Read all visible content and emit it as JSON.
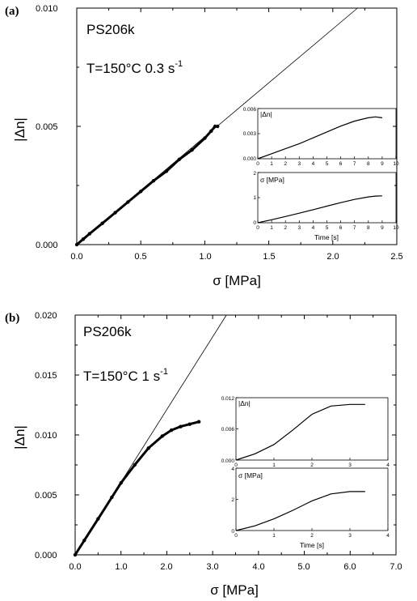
{
  "chart_data": [
    {
      "type": "scatter",
      "panel_label": "(a)",
      "annotations": {
        "sample": "PS206k",
        "condition": "T=150°C   0.3 s",
        "condition_sup": "-1"
      },
      "xlabel": "σ [MPa]",
      "ylabel": "|Δn|",
      "xlim": [
        0,
        2.5
      ],
      "ylim": [
        0,
        0.01
      ],
      "xticks": [
        "0.0",
        "0.5",
        "1.0",
        "1.5",
        "2.0",
        "2.5"
      ],
      "yticks": [
        "0.000",
        "0.005",
        "0.010"
      ],
      "reference_line": {
        "x": [
          0,
          2.5
        ],
        "y": [
          0,
          0.0114
        ]
      },
      "series": [
        {
          "x": [
            0.0,
            0.05,
            0.1,
            0.2,
            0.3,
            0.4,
            0.5,
            0.6,
            0.7,
            0.8,
            0.9,
            1.0,
            1.05,
            1.08,
            1.1
          ],
          "y": [
            0.0,
            0.00023,
            0.00046,
            0.0009,
            0.00135,
            0.0018,
            0.00225,
            0.0027,
            0.0031,
            0.0036,
            0.004,
            0.0045,
            0.0048,
            0.005,
            0.005
          ]
        }
      ],
      "insets": [
        {
          "ylabel": "|Δn|",
          "xlim": [
            0,
            10
          ],
          "ylim": [
            0,
            0.006
          ],
          "xticks": [
            "0",
            "1",
            "2",
            "3",
            "4",
            "5",
            "6",
            "7",
            "8",
            "9",
            "10"
          ],
          "yticks": [
            "0.000",
            "0.003",
            "0.006"
          ],
          "x": [
            0,
            1,
            2,
            3,
            4,
            5,
            6,
            7,
            8,
            8.5,
            9
          ],
          "y": [
            0.0,
            0.0006,
            0.0012,
            0.0018,
            0.0025,
            0.0032,
            0.0039,
            0.0045,
            0.0049,
            0.005,
            0.0049
          ]
        },
        {
          "ylabel": "σ [MPa]",
          "xlabel": "Time [s]",
          "xlim": [
            0,
            10
          ],
          "ylim": [
            0,
            2
          ],
          "xticks": [
            "0",
            "1",
            "2",
            "3",
            "4",
            "5",
            "6",
            "7",
            "8",
            "9",
            "10"
          ],
          "yticks": [
            "0",
            "1",
            "2"
          ],
          "x": [
            0,
            1,
            2,
            3,
            4,
            5,
            6,
            7,
            8,
            8.5,
            9
          ],
          "y": [
            0.0,
            0.12,
            0.25,
            0.38,
            0.52,
            0.66,
            0.8,
            0.93,
            1.03,
            1.06,
            1.07
          ]
        }
      ]
    },
    {
      "type": "scatter",
      "panel_label": "(b)",
      "annotations": {
        "sample": "PS206k",
        "condition": "T=150°C 1 s",
        "condition_sup": "-1"
      },
      "xlabel": "σ [MPa]",
      "ylabel": "|Δn|",
      "xlim": [
        0,
        7
      ],
      "ylim": [
        0,
        0.02
      ],
      "xticks": [
        "0.0",
        "1.0",
        "2.0",
        "3.0",
        "4.0",
        "5.0",
        "6.0",
        "7.0"
      ],
      "yticks": [
        "0.000",
        "0.005",
        "0.010",
        "0.015",
        "0.020"
      ],
      "reference_line": {
        "x": [
          0,
          3.3
        ],
        "y": [
          0,
          0.02
        ]
      },
      "series": [
        {
          "x": [
            0.0,
            0.2,
            0.5,
            0.8,
            1.0,
            1.3,
            1.6,
            1.9,
            2.1,
            2.3,
            2.5,
            2.7
          ],
          "y": [
            0.0,
            0.0012,
            0.003,
            0.0048,
            0.006,
            0.0075,
            0.0089,
            0.0099,
            0.0104,
            0.0107,
            0.0109,
            0.0111
          ]
        }
      ],
      "insets": [
        {
          "ylabel": "|Δn|",
          "xlim": [
            0,
            4
          ],
          "ylim": [
            0,
            0.012
          ],
          "xticks": [
            "0",
            "1",
            "2",
            "3",
            "4"
          ],
          "yticks": [
            "0.000",
            "0.006",
            "0.012"
          ],
          "x": [
            0,
            0.5,
            1.0,
            1.5,
            2.0,
            2.5,
            3.0,
            3.4
          ],
          "y": [
            0.0,
            0.0012,
            0.003,
            0.0058,
            0.0088,
            0.0104,
            0.0107,
            0.0107
          ]
        },
        {
          "ylabel": "σ [MPa]",
          "xlabel": "Time [s]",
          "xlim": [
            0,
            4
          ],
          "ylim": [
            0,
            4
          ],
          "xticks": [
            "0",
            "1",
            "2",
            "3",
            "4"
          ],
          "yticks": [
            "0",
            "2",
            "4"
          ],
          "x": [
            0,
            0.5,
            1.0,
            1.5,
            2.0,
            2.5,
            3.0,
            3.4
          ],
          "y": [
            0.0,
            0.3,
            0.75,
            1.3,
            1.9,
            2.35,
            2.5,
            2.5
          ]
        }
      ]
    }
  ]
}
